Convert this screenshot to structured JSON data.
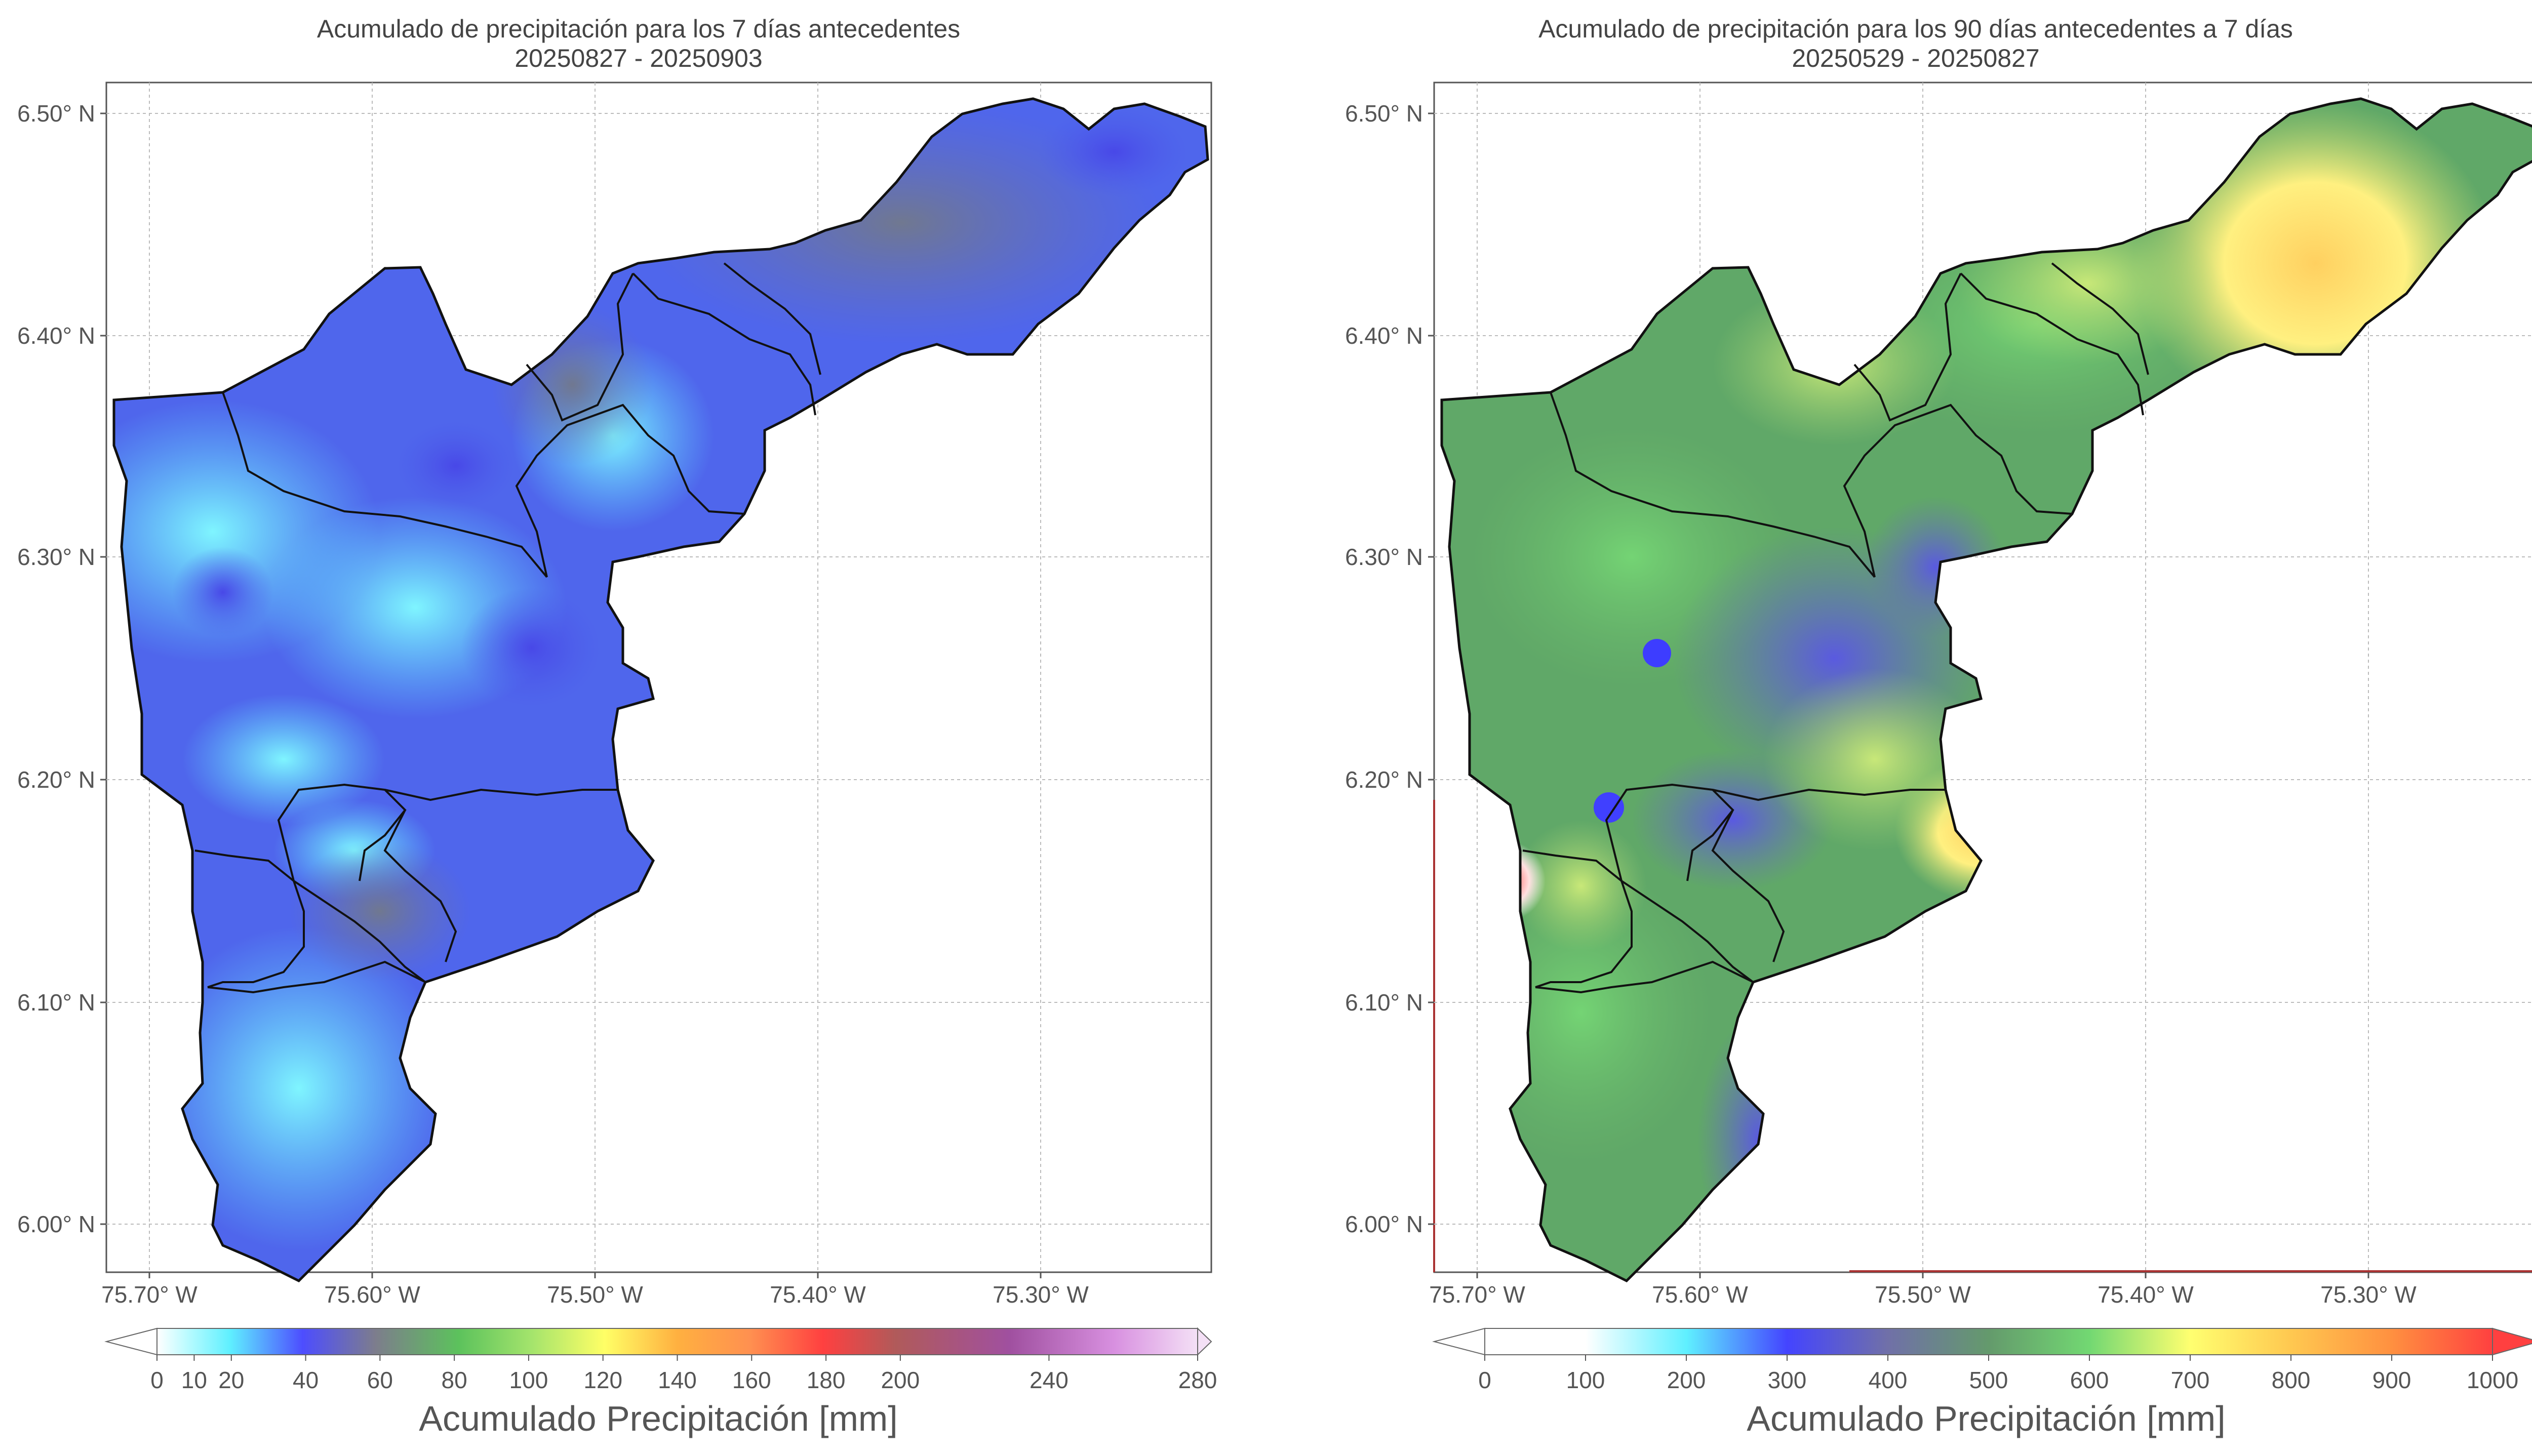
{
  "panels": [
    {
      "title_line1": "Acumulado de precipitación para los 7 días antecedentes",
      "title_line2": "20250827 - 20250903",
      "colorbar": {
        "label": "Acumulado Precipitación [mm]",
        "ticks": [
          "0",
          "10",
          "20",
          "40",
          "60",
          "80",
          "100",
          "120",
          "140",
          "160",
          "180",
          "200",
          "240",
          "280"
        ],
        "tick_values": [
          0,
          10,
          20,
          40,
          60,
          80,
          100,
          120,
          140,
          160,
          180,
          200,
          240,
          280
        ],
        "stops": [
          "#ffffff",
          "#5ff0ff",
          "#4d4dff",
          "#7d7d8c",
          "#5cc25c",
          "#ffff66",
          "#ff9933",
          "#ff4040",
          "#b05a8c",
          "#e8a8e8",
          "#f8e8f8"
        ]
      },
      "dominant_colors": [
        "#5fdcff",
        "#4d5dea",
        "#6e78a8"
      ]
    },
    {
      "title_line1": "Acumulado de precipitación para los 90 días antecedentes a 7 días",
      "title_line2": "20250529 - 20250827",
      "colorbar": {
        "label": "Acumulado Precipitación [mm]",
        "ticks": [
          "0",
          "100",
          "200",
          "300",
          "400",
          "500",
          "600",
          "700",
          "800",
          "900",
          "1000"
        ],
        "tick_values": [
          0,
          100,
          200,
          300,
          400,
          500,
          600,
          700,
          800,
          900,
          1000
        ],
        "stops": [
          "#ffffff",
          "#ffffff",
          "#5ff0ff",
          "#4444ff",
          "#7d7d8c",
          "#64a064",
          "#72d872",
          "#ffff70",
          "#ffb040",
          "#ff4040"
        ]
      },
      "dominant_colors": [
        "#5a9a6a",
        "#6a70b0",
        "#c8e070",
        "#fff080"
      ]
    }
  ],
  "axes": {
    "x_ticks": [
      "75.70° W",
      "75.60° W",
      "75.50° W",
      "75.40° W",
      "75.30° W"
    ],
    "y_ticks": [
      "6.50° N",
      "6.40° N",
      "6.30° N",
      "6.20° N",
      "6.10° N",
      "6.00° N"
    ],
    "x_values": [
      -75.7,
      -75.6,
      -75.5,
      -75.4,
      -75.3
    ],
    "y_values": [
      6.5,
      6.4,
      6.3,
      6.2,
      6.1,
      6.0
    ],
    "lon_range": [
      -75.72,
      -75.22
    ],
    "lat_range": [
      5.98,
      6.513
    ]
  }
}
